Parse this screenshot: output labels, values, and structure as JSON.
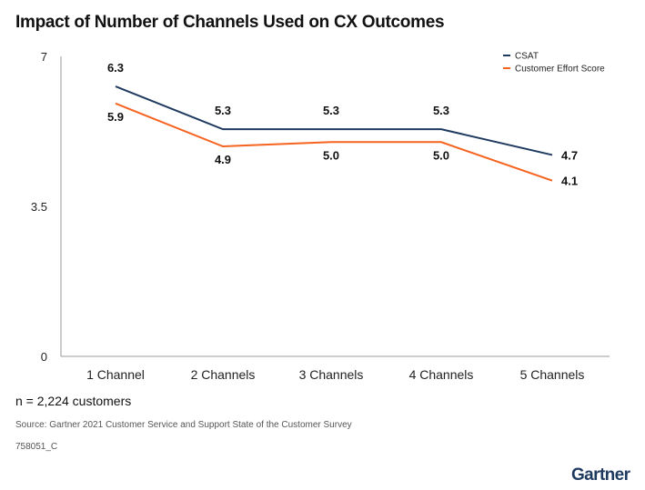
{
  "title": "Impact of Number of Channels Used on CX Outcomes",
  "note": "n = 2,224 customers",
  "source": "Source: Gartner 2021 Customer Service and Support State of the Customer Survey",
  "code": "758051_C",
  "brand": "Gartner",
  "colors": {
    "csat": "#1f3a5f",
    "ces": "#f5631f",
    "axis": "#999999"
  },
  "chart_data": {
    "type": "line",
    "title": "Impact of Number of Channels Used on CX Outcomes",
    "categories": [
      "1 Channel",
      "2 Channels",
      "3 Channels",
      "4 Channels",
      "5 Channels"
    ],
    "series": [
      {
        "name": "CSAT",
        "values": [
          6.3,
          5.3,
          5.3,
          5.3,
          4.7
        ],
        "labels": [
          "6.3",
          "5.3",
          "5.3",
          "5.3",
          "4.7"
        ]
      },
      {
        "name": "Customer Effort Score",
        "values": [
          5.9,
          4.9,
          5.0,
          5.0,
          4.1
        ],
        "labels": [
          "5.9",
          "4.9",
          "5.0",
          "5.0",
          "4.1"
        ]
      }
    ],
    "yticks": [
      "0",
      "3.5",
      "7"
    ],
    "ylim": [
      0,
      7
    ],
    "grid": false,
    "legend": "top-right"
  }
}
